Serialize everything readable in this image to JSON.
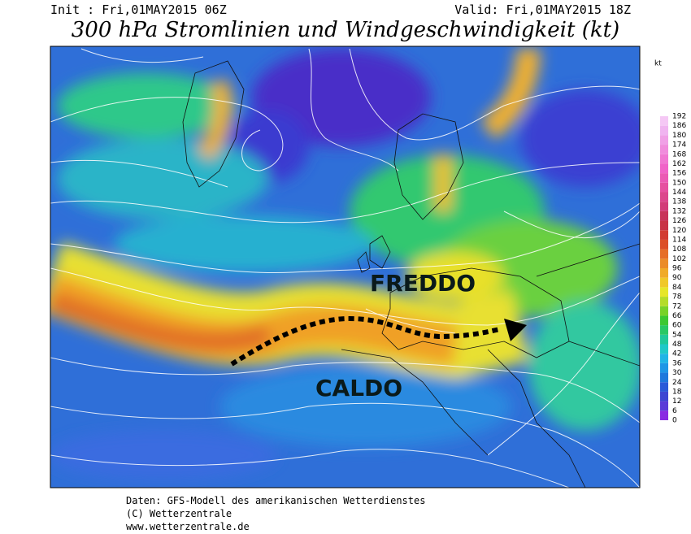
{
  "header": {
    "init": "Init : Fri,01MAY2015 06Z",
    "valid": "Valid: Fri,01MAY2015 18Z",
    "title": "300 hPa Stromlinien und Windgeschwindigkeit (kt)"
  },
  "map": {
    "labels": [
      "FREDDO",
      "CALDO"
    ]
  },
  "colorbar": {
    "unit": "kt",
    "ticks": [
      0,
      6,
      12,
      18,
      24,
      30,
      36,
      42,
      48,
      54,
      60,
      66,
      72,
      78,
      84,
      90,
      96,
      102,
      108,
      114,
      120,
      126,
      132,
      138,
      144,
      150,
      156,
      162,
      168,
      174,
      180,
      186,
      192
    ],
    "colors": [
      "#8a2be2",
      "#5a3cd8",
      "#3c46d2",
      "#2a5ad8",
      "#1e78dc",
      "#1e96e6",
      "#20b4e6",
      "#20c8c8",
      "#20c89a",
      "#28c864",
      "#3cc832",
      "#78d228",
      "#b4dc28",
      "#e6e628",
      "#f0c828",
      "#f0aa28",
      "#eb8c28",
      "#e66e28",
      "#dc5028",
      "#d23c32",
      "#c83246",
      "#c8325a",
      "#d23c78",
      "#dc468c",
      "#e650a0",
      "#eb5ab4",
      "#f064c8",
      "#f078d2",
      "#f08cdc",
      "#f0a0e6",
      "#f0b4f0",
      "#f5c8f5"
    ]
  },
  "footer": {
    "lines": [
      "Daten: GFS-Modell des amerikanischen Wetterdienstes",
      "(C) Wetterzentrale",
      "www.wetterzentrale.de"
    ]
  }
}
